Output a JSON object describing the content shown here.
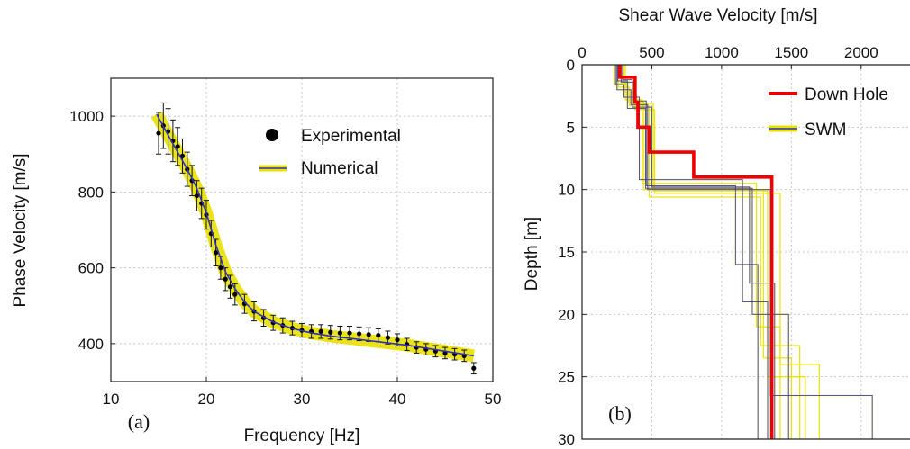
{
  "chart_data": [
    {
      "type": "scatter",
      "panel_label": "(a)",
      "xlabel": "Frequency [Hz]",
      "ylabel": "Phase Velocity [m/s]",
      "xlim": [
        10,
        50
      ],
      "ylim": [
        300,
        1100
      ],
      "xticks": [
        "10",
        "20",
        "30",
        "40",
        "50"
      ],
      "yticks": [
        "400",
        "600",
        "800",
        "1000"
      ],
      "grid": true,
      "legend_position": "top-right",
      "series": [
        {
          "name": "Experimental",
          "style": "points-with-errorbars",
          "color": "#000000",
          "x": [
            15,
            15.5,
            16,
            16.5,
            17,
            17.5,
            18,
            18.5,
            19,
            19.5,
            20,
            20.5,
            21,
            21.5,
            22,
            22.5,
            23,
            24,
            25,
            26,
            27,
            28,
            29,
            30,
            31,
            32,
            33,
            34,
            35,
            36,
            37,
            38,
            39,
            40,
            41,
            42,
            43,
            44,
            45,
            46,
            47,
            48
          ],
          "y": [
            955,
            975,
            960,
            935,
            920,
            895,
            860,
            830,
            790,
            770,
            740,
            690,
            640,
            600,
            570,
            550,
            530,
            505,
            485,
            468,
            455,
            448,
            441,
            435,
            432,
            432,
            430,
            428,
            428,
            426,
            424,
            422,
            416,
            410,
            398,
            390,
            385,
            380,
            375,
            372,
            368,
            335
          ],
          "error": [
            55,
            60,
            60,
            55,
            50,
            45,
            45,
            40,
            40,
            40,
            38,
            35,
            35,
            30,
            30,
            30,
            28,
            25,
            25,
            22,
            20,
            20,
            18,
            18,
            18,
            18,
            18,
            18,
            18,
            18,
            18,
            17,
            17,
            16,
            16,
            15,
            15,
            15,
            15,
            15,
            15,
            15
          ]
        },
        {
          "name": "Numerical",
          "style": "lines",
          "colors": [
            "#e8e000",
            "#3030c0"
          ],
          "x": [
            14.8,
            16,
            17,
            18,
            19,
            20,
            21,
            22,
            23,
            24,
            25,
            27,
            29,
            31,
            33,
            35,
            37,
            39,
            41,
            43,
            45,
            47,
            48
          ],
          "y": [
            1005,
            950,
            905,
            860,
            810,
            745,
            660,
            590,
            545,
            510,
            485,
            457,
            440,
            428,
            420,
            414,
            408,
            402,
            396,
            388,
            380,
            372,
            368
          ]
        }
      ]
    },
    {
      "type": "line",
      "panel_label": "(b)",
      "title": "Shear Wave Velocity [m/s]",
      "ylabel": "Depth [m]",
      "xlim": [
        0,
        2350
      ],
      "ylim": [
        30,
        0
      ],
      "x_axis_position": "top",
      "xticks": [
        "0",
        "500",
        "1000",
        "1500",
        "2000"
      ],
      "yticks": [
        "0",
        "5",
        "10",
        "15",
        "20",
        "25",
        "30"
      ],
      "grid": true,
      "legend_position": "top-right",
      "series": [
        {
          "name": "Down Hole",
          "color": "#ee0000",
          "profile": [
            {
              "depth_top": 0,
              "depth_bottom": 1,
              "velocity": 270
            },
            {
              "depth_top": 1,
              "depth_bottom": 3,
              "velocity": 380
            },
            {
              "depth_top": 3,
              "depth_bottom": 5,
              "velocity": 400
            },
            {
              "depth_top": 5,
              "depth_bottom": 7,
              "velocity": 480
            },
            {
              "depth_top": 7,
              "depth_bottom": 9,
              "velocity": 800
            },
            {
              "depth_top": 9,
              "depth_bottom": 30,
              "velocity": 1360
            }
          ]
        },
        {
          "name": "SWM",
          "colors": [
            "#e8e000",
            "#3030c0"
          ],
          "profiles": [
            [
              {
                "d": 0,
                "v": 230
              },
              {
                "d": 1.5,
                "v": 330
              },
              {
                "d": 3,
                "v": 440
              },
              {
                "d": 10,
                "v": 1300
              },
              {
                "d": 23.5,
                "v": 1500
              },
              {
                "d": 30,
                "v": 1500
              }
            ],
            [
              {
                "d": 0,
                "v": 250
              },
              {
                "d": 2,
                "v": 350
              },
              {
                "d": 3.2,
                "v": 470
              },
              {
                "d": 10,
                "v": 1350
              },
              {
                "d": 26.5,
                "v": 2080
              },
              {
                "d": 30,
                "v": 2080
              }
            ],
            [
              {
                "d": 0,
                "v": 270
              },
              {
                "d": 1,
                "v": 310
              },
              {
                "d": 2.8,
                "v": 430
              },
              {
                "d": 9.5,
                "v": 1250
              },
              {
                "d": 21,
                "v": 1420
              },
              {
                "d": 30,
                "v": 1420
              }
            ],
            [
              {
                "d": 0,
                "v": 290
              },
              {
                "d": 1.2,
                "v": 360
              },
              {
                "d": 3.4,
                "v": 500
              },
              {
                "d": 9.8,
                "v": 1200
              },
              {
                "d": 17.5,
                "v": 1380
              },
              {
                "d": 30,
                "v": 1380
              }
            ],
            [
              {
                "d": 0,
                "v": 310
              },
              {
                "d": 2.2,
                "v": 380
              },
              {
                "d": 3.6,
                "v": 520
              },
              {
                "d": 10.3,
                "v": 1420
              },
              {
                "d": 24,
                "v": 1700
              },
              {
                "d": 30,
                "v": 1700
              }
            ],
            [
              {
                "d": 0,
                "v": 240
              },
              {
                "d": 1.6,
                "v": 300
              },
              {
                "d": 2.6,
                "v": 410
              },
              {
                "d": 9.2,
                "v": 1150
              },
              {
                "d": 19,
                "v": 1330
              },
              {
                "d": 30,
                "v": 1330
              }
            ],
            [
              {
                "d": 0,
                "v": 260
              },
              {
                "d": 1.8,
                "v": 340
              },
              {
                "d": 3.3,
                "v": 480
              },
              {
                "d": 10.6,
                "v": 1280
              },
              {
                "d": 22.5,
                "v": 1560
              },
              {
                "d": 30,
                "v": 1560
              }
            ],
            [
              {
                "d": 0,
                "v": 280
              },
              {
                "d": 1.4,
                "v": 370
              },
              {
                "d": 2.9,
                "v": 460
              },
              {
                "d": 9.7,
                "v": 1100
              },
              {
                "d": 16,
                "v": 1260
              },
              {
                "d": 30,
                "v": 1260
              }
            ],
            [
              {
                "d": 0,
                "v": 300
              },
              {
                "d": 2.4,
                "v": 390
              },
              {
                "d": 3.1,
                "v": 510
              },
              {
                "d": 10.1,
                "v": 1330
              },
              {
                "d": 25,
                "v": 1600
              },
              {
                "d": 30,
                "v": 1600
              }
            ],
            [
              {
                "d": 0,
                "v": 255
              },
              {
                "d": 1.3,
                "v": 325
              },
              {
                "d": 3.5,
                "v": 455
              },
              {
                "d": 9.9,
                "v": 1220
              },
              {
                "d": 20,
                "v": 1480
              },
              {
                "d": 30,
                "v": 1480
              }
            ]
          ]
        }
      ]
    }
  ]
}
